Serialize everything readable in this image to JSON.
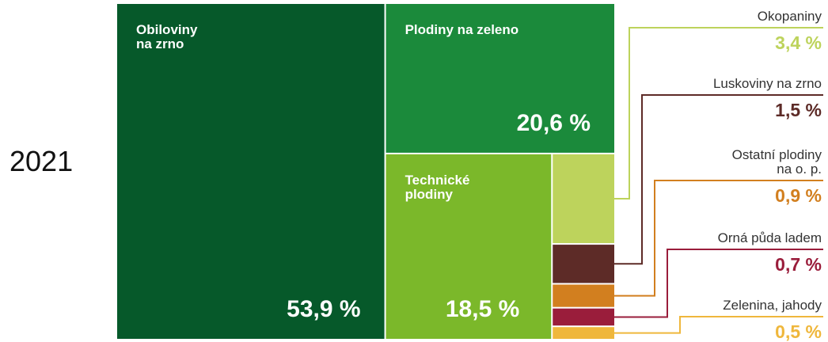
{
  "chart_data": {
    "type": "treemap",
    "title": "2021",
    "categories": [
      "Obiloviny\nna zrno",
      "Plodiny na zeleno",
      "Technické\nplodiny",
      "Okopaniny",
      "Luskoviny na zrno",
      "Ostatní plodiny\nna o. p.",
      "Orná půda ladem",
      "Zelenina, jahody"
    ],
    "values": [
      53.9,
      20.6,
      18.5,
      3.4,
      1.5,
      0.9,
      0.7,
      0.5
    ],
    "value_labels": [
      "53,9 %",
      "20,6 %",
      "18,5 %",
      "3,4 %",
      "1,5 %",
      "0,9 %",
      "0,7 %",
      "0,5 %"
    ],
    "colors": [
      "#06592a",
      "#1b8a3b",
      "#7bb82a",
      "#bdd35c",
      "#5d2b27",
      "#d27f1f",
      "#9a1d3b",
      "#efb73c"
    ]
  }
}
